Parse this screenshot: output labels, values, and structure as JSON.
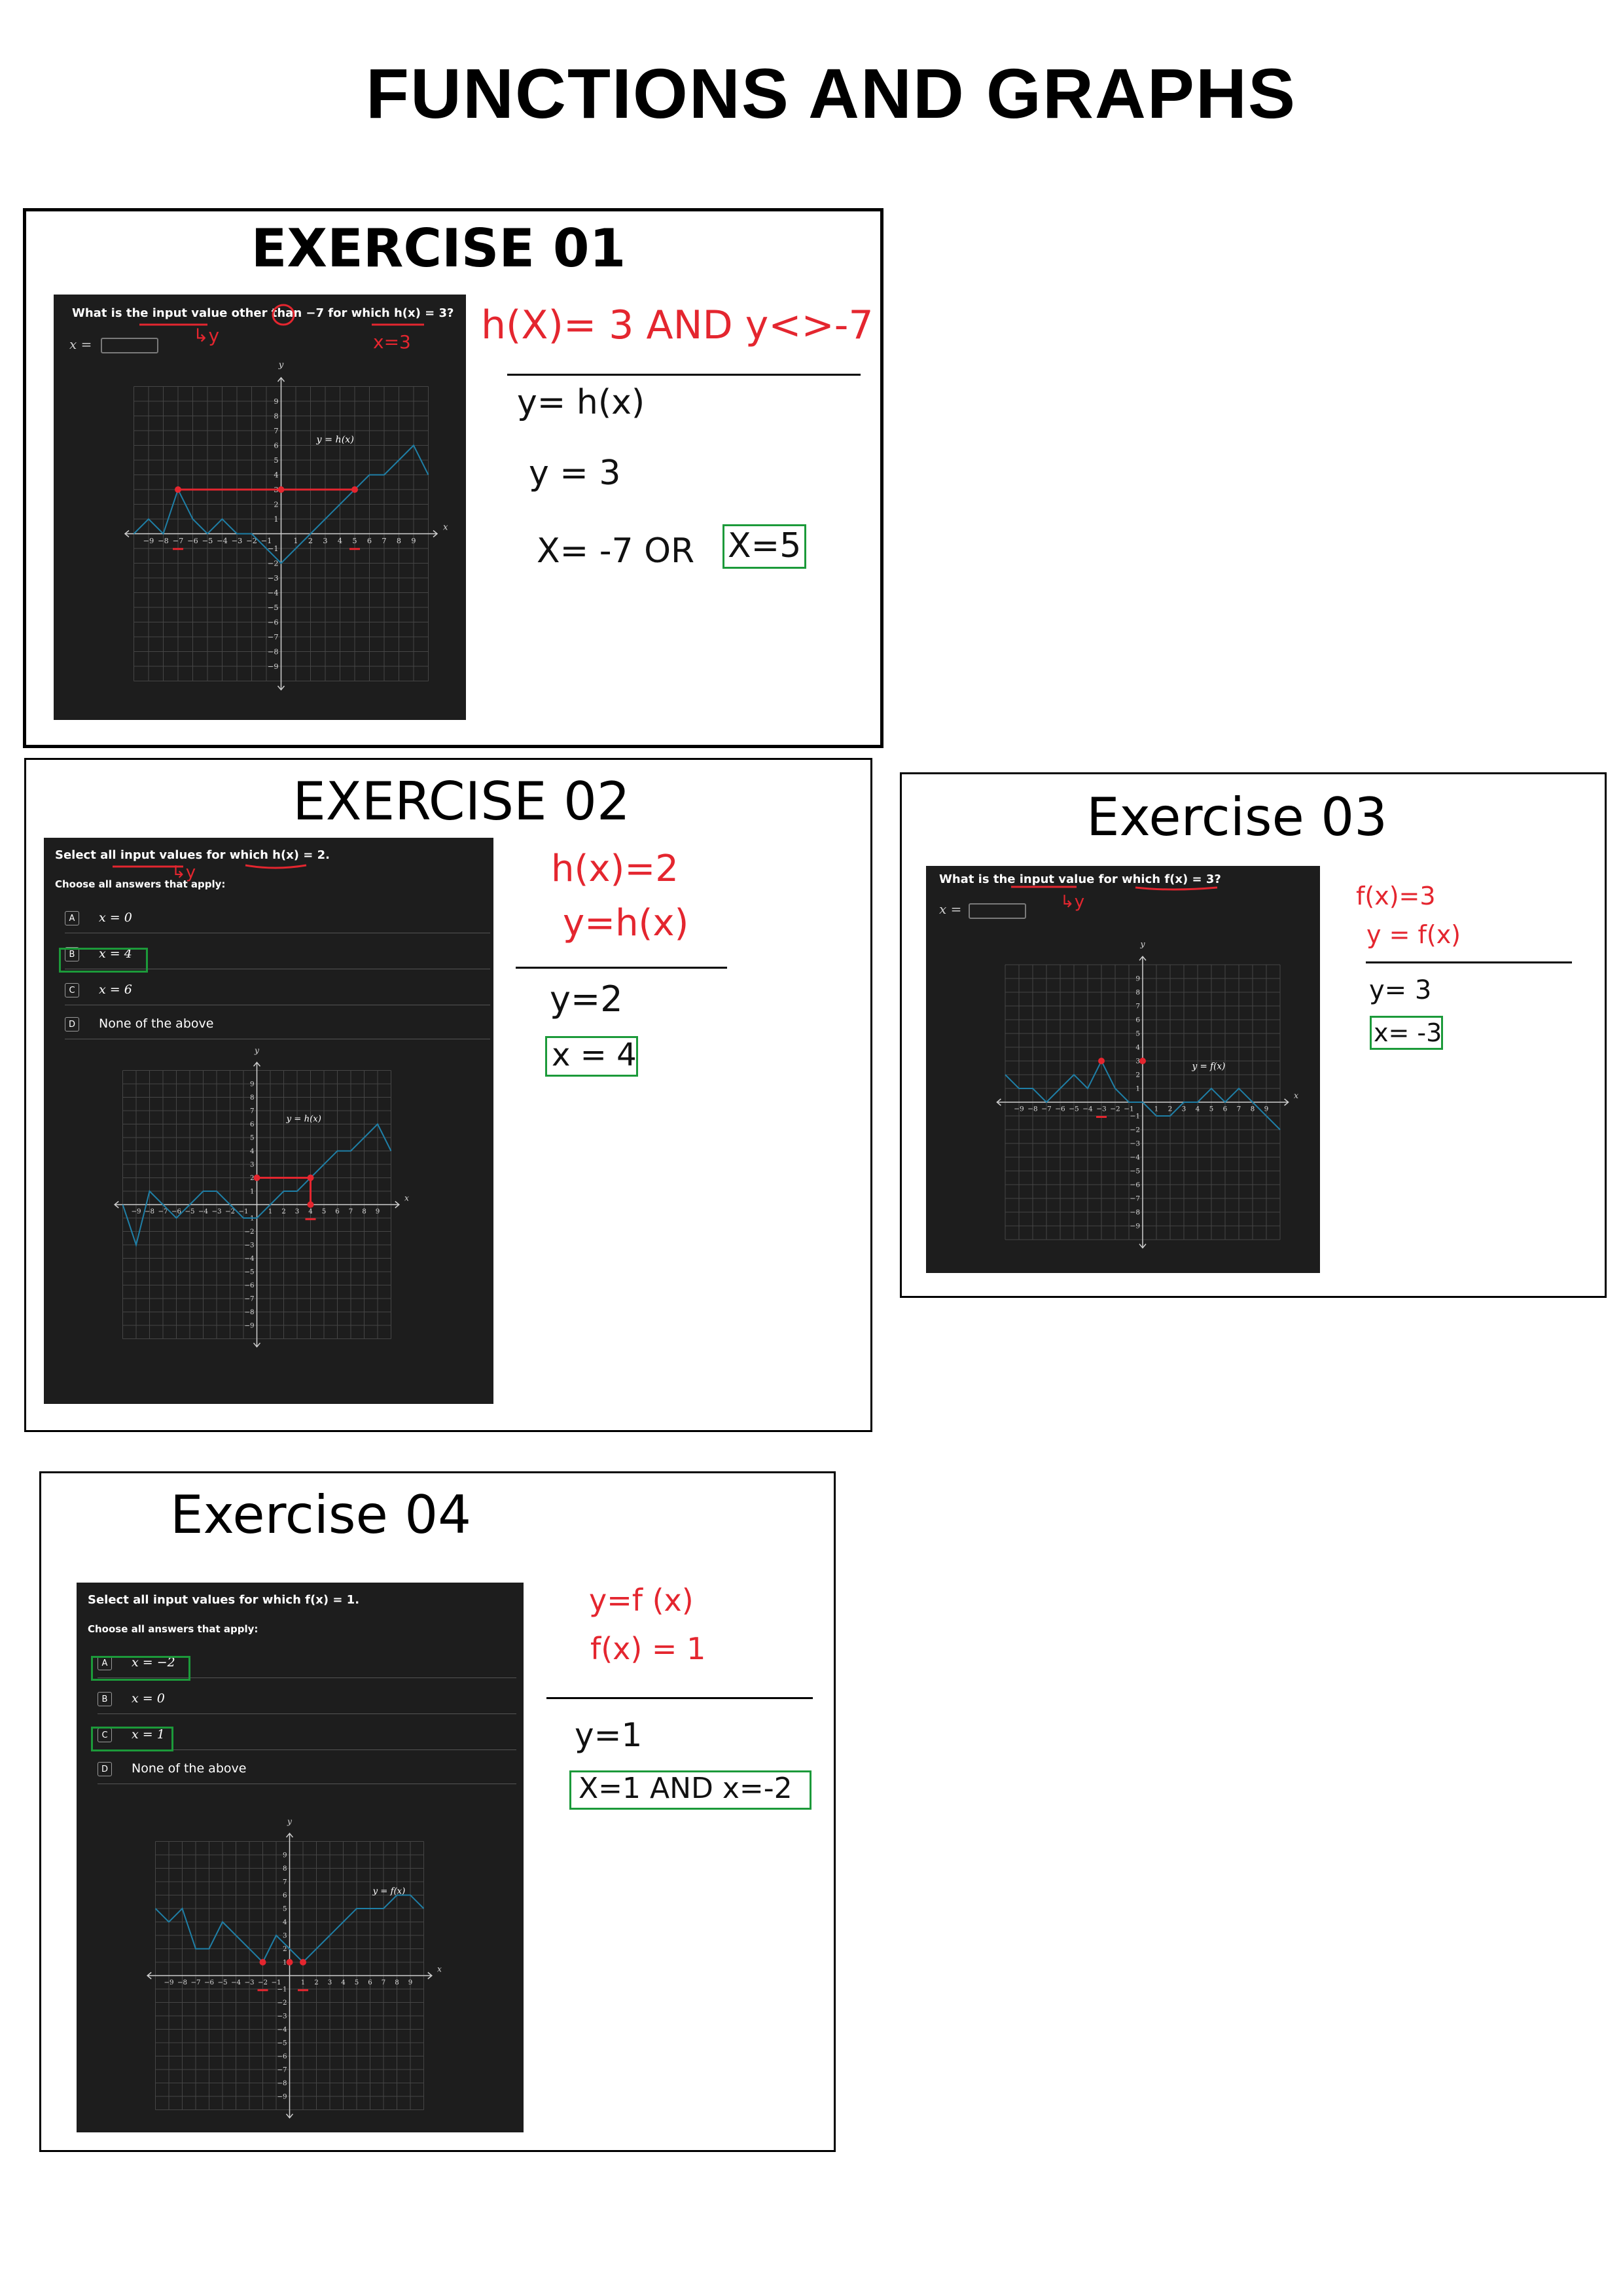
{
  "title": "FUNCTIONS AND GRAPHS",
  "colors": {
    "panel": "#1d1d1d",
    "curve": "#1f7fa6",
    "grid": "#4a4a4a",
    "handwriting_red": "#e4262f",
    "answer_box": "#1c9a3a"
  },
  "exercises": [
    {
      "title": "EXERCISE 01",
      "question": "What is the input value other than −7 for which h(x) = 3?",
      "input_label": "x =",
      "graph": {
        "label": "y = h(x)",
        "x_axis": "x",
        "y_axis": "y"
      },
      "notes": {
        "arrow_note": "↳y",
        "x_note": "x=3"
      },
      "work": [
        "h(X)= 3  AND  y<>-7",
        "y= h(x)",
        "y = 3",
        "X= -7  OR",
        "X=5"
      ]
    },
    {
      "title": "EXERCISE 02",
      "question": "Select all input values for which h(x) = 2.",
      "choose": "Choose all answers that apply:",
      "options": [
        {
          "letter": "A",
          "text": "x = 0"
        },
        {
          "letter": "B",
          "text": "x = 4"
        },
        {
          "letter": "C",
          "text": "x = 6"
        },
        {
          "letter": "D",
          "text": "None of the above"
        }
      ],
      "graph": {
        "label": "y = h(x)",
        "x_axis": "x",
        "y_axis": "y"
      },
      "notes": {
        "arrow_note": "↳y"
      },
      "work": [
        "h(x)=2",
        "y=h(x)",
        "y=2",
        "x = 4"
      ]
    },
    {
      "title": "Exercise 03",
      "question": "What is the input value for which f(x) = 3?",
      "input_label": "x =",
      "graph": {
        "label": "y = f(x)",
        "x_axis": "x",
        "y_axis": "y"
      },
      "notes": {
        "arrow_note": "↳y"
      },
      "work": [
        "f(x)=3",
        "y = f(x)",
        "y= 3",
        "x= -3"
      ]
    },
    {
      "title": "Exercise 04",
      "question": "Select all input values for which f(x) = 1.",
      "choose": "Choose all answers that apply:",
      "options": [
        {
          "letter": "A",
          "text": "x = −2"
        },
        {
          "letter": "B",
          "text": "x = 0"
        },
        {
          "letter": "C",
          "text": "x = 1"
        },
        {
          "letter": "D",
          "text": "None of the above"
        }
      ],
      "graph": {
        "label": "y = f(x)",
        "x_axis": "x",
        "y_axis": "y"
      },
      "work": [
        "y=f (x)",
        "f(x) = 1",
        "y=1",
        "X=1  AND  x=-2"
      ]
    }
  ]
}
